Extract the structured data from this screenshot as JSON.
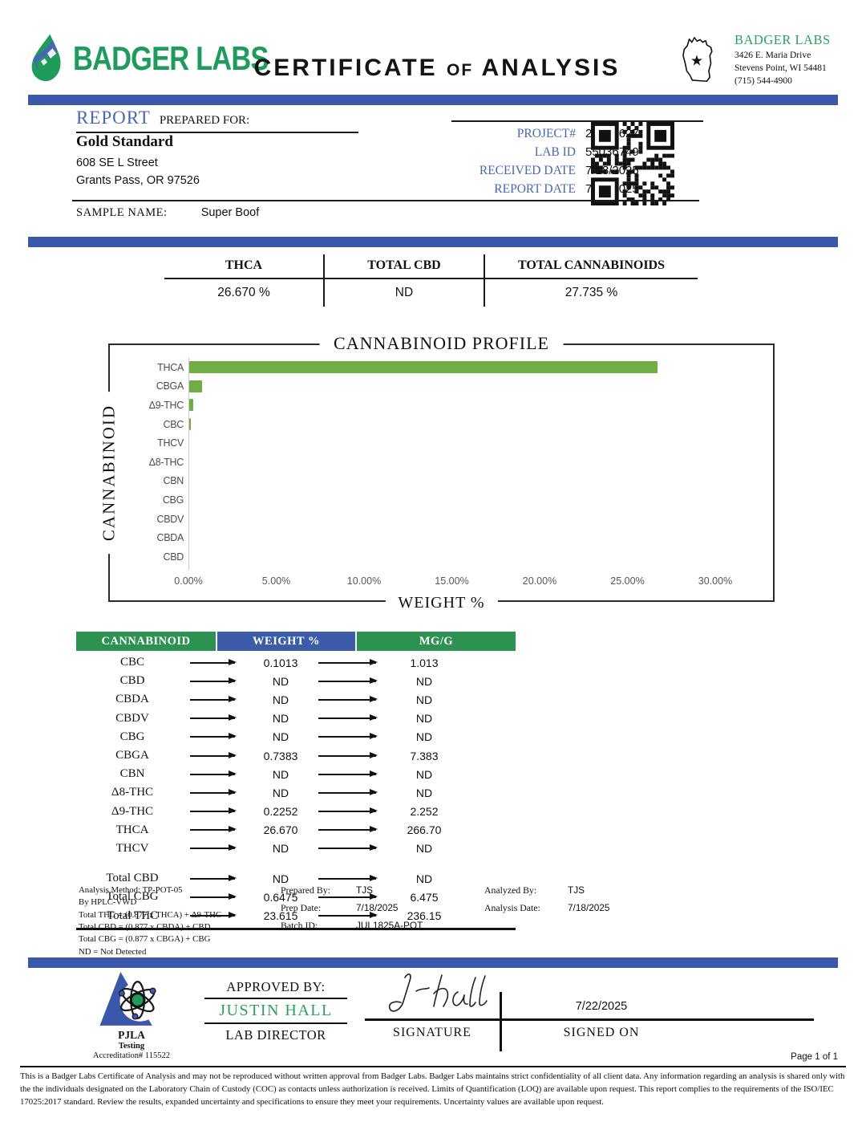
{
  "header": {
    "brand": "BADGER LABS",
    "title_1": "CERTIFICATE",
    "title_2": "OF",
    "title_3": "ANALYSIS",
    "lab": {
      "name": "BADGER LABS",
      "address1": "3426 E. Maria Drive",
      "address2": "Stevens Point, WI 54481",
      "phone": "(715) 544-4900"
    }
  },
  "report": {
    "label": "REPORT",
    "sublabel": "PREPARED FOR:",
    "client_name": "Gold Standard",
    "client_address1": "608 SE L Street",
    "client_address2": "Grants Pass, OR 97526",
    "meta": [
      {
        "label": "PROJECT#",
        "value": "25014627"
      },
      {
        "label": "LAB ID",
        "value": "55036749"
      },
      {
        "label": "RECEIVED DATE",
        "value": "7/18/2025"
      },
      {
        "label": "REPORT DATE",
        "value": "7/22/2025"
      }
    ],
    "sample_label": "SAMPLE NAME:",
    "sample_name": "Super Boof"
  },
  "summary": {
    "columns": [
      {
        "label": "THCA",
        "value": "26.670 %"
      },
      {
        "label": "TOTAL CBD",
        "value": "ND"
      },
      {
        "label": "TOTAL CANNABINOIDS",
        "value": "27.735 %"
      }
    ]
  },
  "chart_data": {
    "type": "bar",
    "orientation": "horizontal",
    "title": "CANNABINOID PROFILE",
    "xlabel": "WEIGHT %",
    "ylabel": "CANNABINOID",
    "categories": [
      "THCA",
      "CBGA",
      "Δ9-THC",
      "CBC",
      "THCV",
      "Δ8-THC",
      "CBN",
      "CBG",
      "CBDV",
      "CBDA",
      "CBD"
    ],
    "values": [
      26.67,
      0.7383,
      0.2252,
      0.1013,
      0,
      0,
      0,
      0,
      0,
      0,
      0
    ],
    "xlim": [
      0,
      30
    ],
    "x_ticks": [
      "0.00%",
      "5.00%",
      "10.00%",
      "15.00%",
      "20.00%",
      "25.00%",
      "30.00%"
    ],
    "bar_color": "#70ad47",
    "grid": false,
    "legend": null
  },
  "results_table": {
    "headers": [
      "CANNABINOID",
      "WEIGHT %",
      "MG/G"
    ],
    "header_colors": [
      "#2d9151",
      "#3c5caa",
      "#2d9151"
    ],
    "rows": [
      {
        "name": "CBC",
        "weight": "0.1013",
        "mg": "1.013"
      },
      {
        "name": "CBD",
        "weight": "ND",
        "mg": "ND"
      },
      {
        "name": "CBDA",
        "weight": "ND",
        "mg": "ND"
      },
      {
        "name": "CBDV",
        "weight": "ND",
        "mg": "ND"
      },
      {
        "name": "CBG",
        "weight": "ND",
        "mg": "ND"
      },
      {
        "name": "CBGA",
        "weight": "0.7383",
        "mg": "7.383"
      },
      {
        "name": "CBN",
        "weight": "ND",
        "mg": "ND"
      },
      {
        "name": "Δ8-THC",
        "weight": "ND",
        "mg": "ND"
      },
      {
        "name": "Δ9-THC",
        "weight": "0.2252",
        "mg": "2.252"
      },
      {
        "name": "THCA",
        "weight": "26.670",
        "mg": "266.70"
      },
      {
        "name": "THCV",
        "weight": "ND",
        "mg": "ND"
      }
    ],
    "totals": [
      {
        "name": "Total CBD",
        "weight": "ND",
        "mg": "ND"
      },
      {
        "name": "Total CBG",
        "weight": "0.6475",
        "mg": "6.475"
      },
      {
        "name": "Total THC",
        "weight": "23.615",
        "mg": "236.15"
      }
    ]
  },
  "notes": {
    "method_lines": [
      "Analysis Method: TP-POT-05",
      "By HPLC-VWD",
      "Total THC = (0.877 x  THCA) + Δ9-THC",
      "Total CBD = (0.877 x  CBDA) + CBD",
      "Total CBG = (0.877 x  CBGA) + CBG",
      "ND = Not Detected"
    ],
    "prep": [
      {
        "label": "Prepared By:",
        "value": "TJS"
      },
      {
        "label": "Prep Date:",
        "value": "7/18/2025"
      },
      {
        "label": "Batch ID:",
        "value": "JUL1825A-POT"
      }
    ],
    "analysis": [
      {
        "label": "Analyzed By:",
        "value": "TJS"
      },
      {
        "label": "Analysis Date:",
        "value": "7/18/2025"
      }
    ]
  },
  "approval": {
    "approved_by_label": "APPROVED BY:",
    "approver_name": "JUSTIN HALL",
    "approver_role": "LAB DIRECTOR",
    "signature_label": "SIGNATURE",
    "signed_on_label": "SIGNED ON",
    "signed_date": "7/22/2025"
  },
  "accreditation": {
    "org": "PJLA",
    "line2": "Testing",
    "number": "Accreditation# 115522"
  },
  "footer": {
    "page_label": "Page 1 of 1",
    "disclaimer": "This is a Badger Labs Certificate of Analysis and may not be reproduced without written approval from Badger Labs. Badger Labs maintains strict confidentiality of all client data. Any information regarding an analysis is shared only with the the individuals designated on the Laboratory Chain of Custody (COC) as contacts unless authorization is received. Limits of Quantification (LOQ) are available upon request. This report complies to the requirements of the ISO/IEC 17025:2017 standard. Review the results, expanded uncertainty and specifications to ensure they meet your requirements. Uncertainty values are available upon request."
  },
  "colors": {
    "accent_blue": "#3b57a9",
    "brand_green": "#1f9c5c",
    "table_green": "#2d9151",
    "table_blue": "#3c5caa",
    "bar_green": "#70ad47"
  }
}
